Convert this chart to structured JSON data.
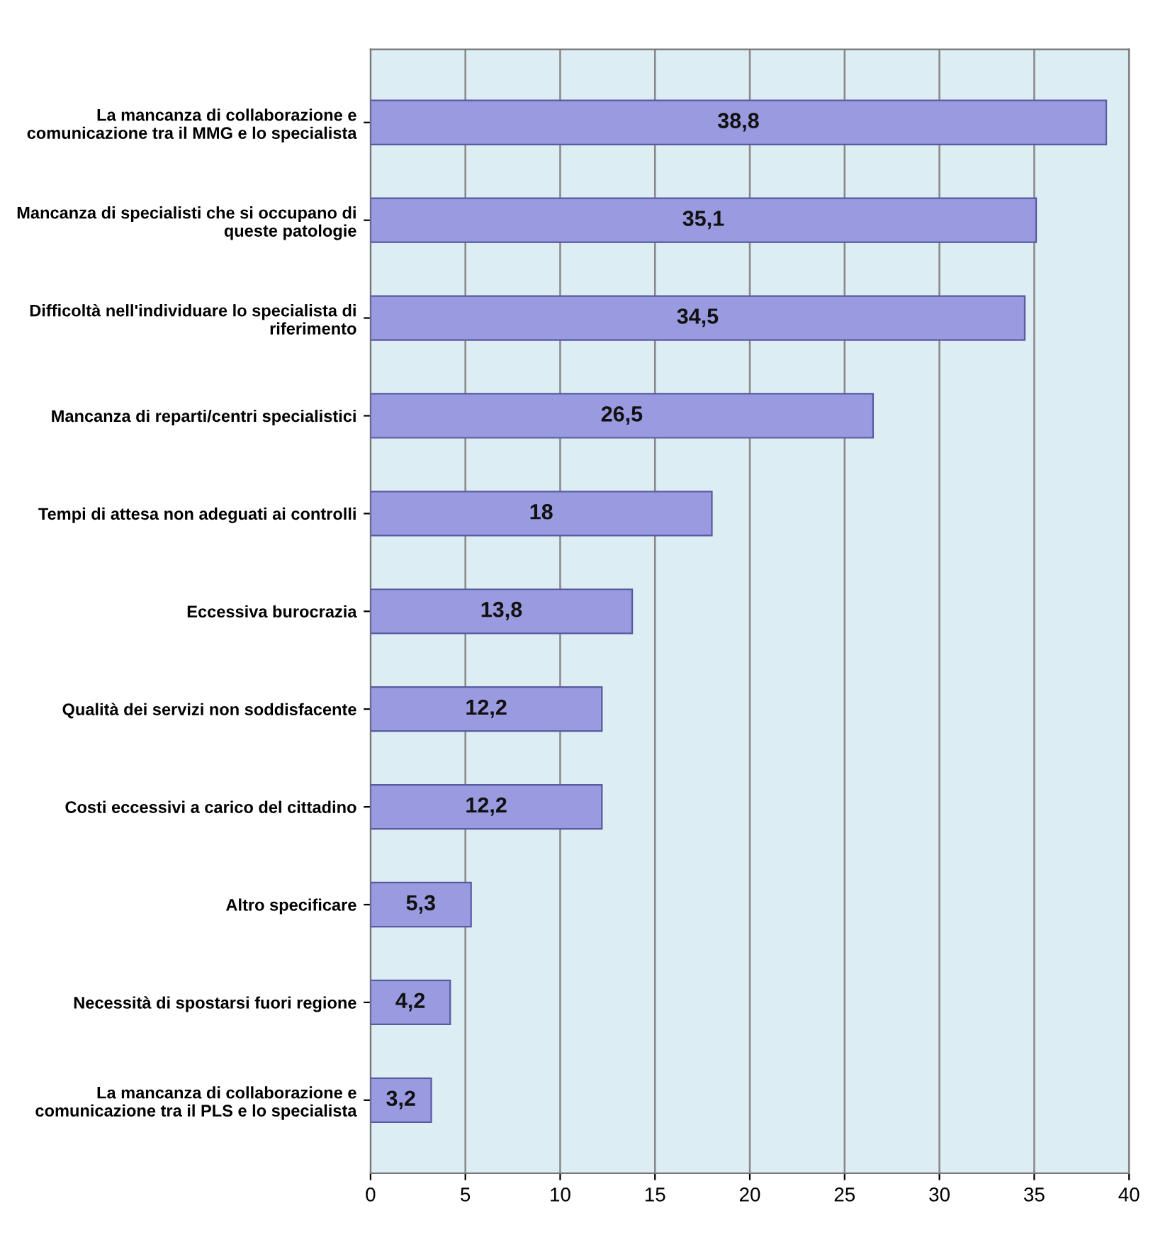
{
  "chart_data": {
    "type": "bar",
    "orientation": "horizontal",
    "categories": [
      "La mancanza di collaborazione e\ncomunicazione tra il MMG e lo specialista",
      "Mancanza di specialisti che si occupano di\nqueste patologie",
      "Difficoltà nell'individuare lo specialista di\nriferimento",
      "Mancanza di reparti/centri specialistici",
      "Tempi di attesa non adeguati ai controlli",
      "Eccessiva burocrazia",
      "Qualità dei servizi non soddisfacente",
      "Costi eccessivi a carico del cittadino",
      "Altro specificare",
      "Necessità di spostarsi fuori regione",
      "La mancanza di collaborazione e\ncomunicazione tra il PLS e lo specialista"
    ],
    "values": [
      38.8,
      35.1,
      34.5,
      26.5,
      18,
      13.8,
      12.2,
      12.2,
      5.3,
      4.2,
      3.2
    ],
    "value_labels": [
      "38,8",
      "35,1",
      "34,5",
      "26,5",
      "18",
      "13,8",
      "12,2",
      "12,2",
      "5,3",
      "4,2",
      "3,2"
    ],
    "color": "#9a9ae0",
    "xlim": [
      0,
      40
    ],
    "xticks": [
      0,
      5,
      10,
      15,
      20,
      25,
      30,
      35,
      40
    ],
    "grid": "x"
  }
}
